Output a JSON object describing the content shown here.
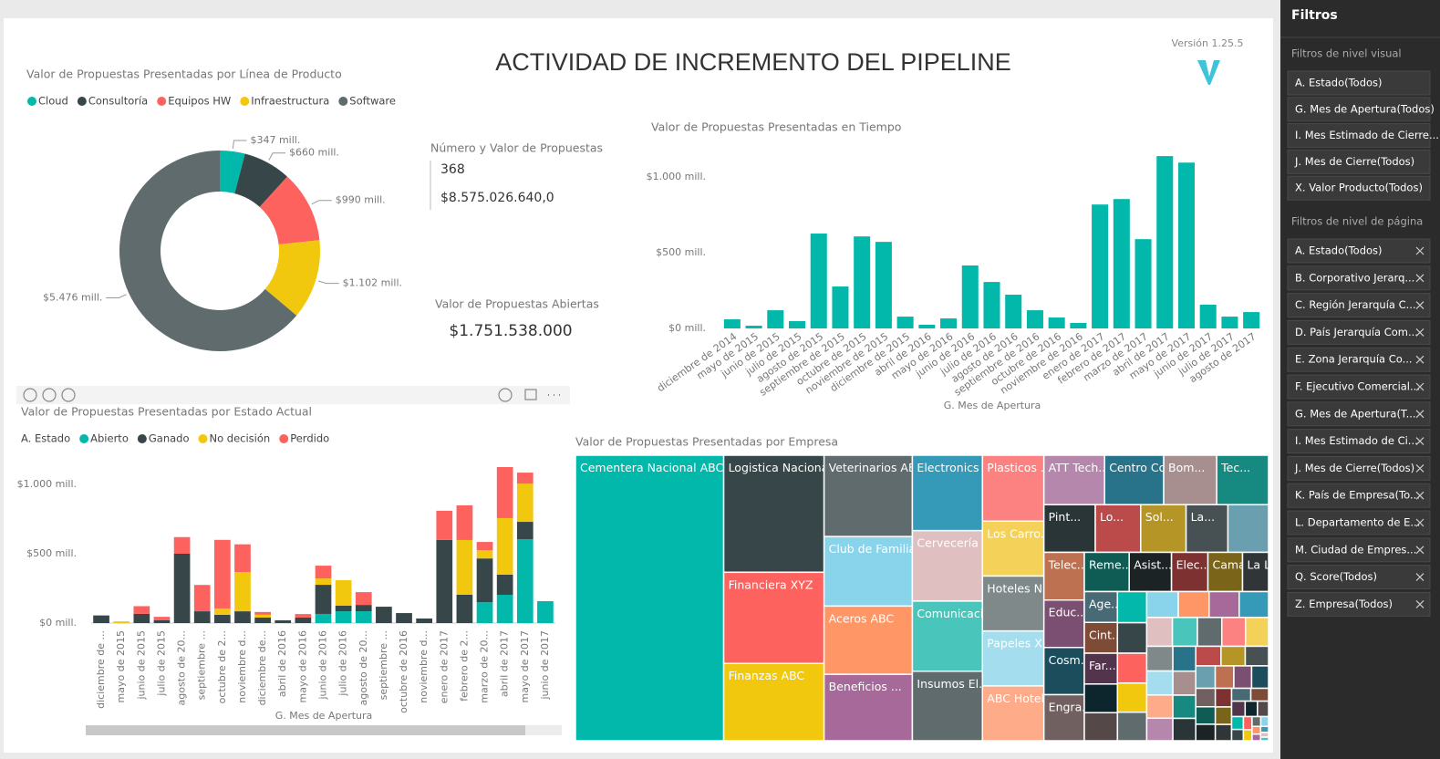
{
  "header": {
    "title": "ACTIVIDAD DE INCREMENTO DEL PIPELINE",
    "version": "Versión 1.25.5"
  },
  "cards": {
    "count_card": {
      "title": "Número y Valor de Propuestas",
      "count": 368,
      "value": "$8.575.026.640,0"
    },
    "open_card": {
      "title": "Valor de Propuestas Abiertas",
      "value": "$1.751.538.000"
    }
  },
  "chart_data": [
    {
      "type": "donut",
      "title": "Valor de Propuestas Presentadas por Línea de Producto",
      "categories": [
        "Cloud",
        "Consultoría",
        "Equipos HW",
        "Infraestructura",
        "Software"
      ],
      "values": [
        347,
        660,
        990,
        1102,
        5476
      ],
      "value_labels": [
        "$347 mill.",
        "$660 mill.",
        "$990 mill.",
        "$1.102 mill.",
        "$5.476 mill."
      ],
      "colors": [
        "#01b8aa",
        "#374649",
        "#fd625e",
        "#f2c80f",
        "#5f6b6d"
      ],
      "legend": "top-left"
    },
    {
      "type": "bar",
      "title": "Valor de Propuestas Presentadas en Tiempo",
      "x_label": "G. Mes de Apertura",
      "categories": [
        "diciembre de 2014",
        "mayo de 2015",
        "junio de 2015",
        "julio de 2015",
        "agosto de 2015",
        "septiembre de 2015",
        "octubre de 2015",
        "noviembre de 2015",
        "diciembre de 2015",
        "abril de 2016",
        "mayo de 2016",
        "junio de 2016",
        "julio de 2016",
        "agosto de 2016",
        "septiembre de 2016",
        "octubre de 2016",
        "noviembre de 2016",
        "enero de 2017",
        "febrero de 2017",
        "marzo de 2017",
        "abril de 2017",
        "mayo de 2017",
        "junio de 2017",
        "julio de 2017",
        "agosto de 2017"
      ],
      "values": [
        60,
        18,
        120,
        48,
        627,
        277,
        608,
        572,
        78,
        24,
        66,
        416,
        307,
        223,
        120,
        72,
        36,
        819,
        855,
        590,
        1139,
        1096,
        157,
        78,
        108
      ],
      "color": "#01b8aa",
      "ylim": [
        0,
        1200
      ],
      "yticks": [
        {
          "value": 0,
          "label": "$0 mill."
        },
        {
          "value": 500,
          "label": "$500 mill."
        },
        {
          "value": 1000,
          "label": "$1.000 mill."
        }
      ]
    },
    {
      "type": "stacked_bar",
      "title": "Valor de Propuestas Presentadas por Estado Actual",
      "x_label": "G. Mes de Apertura",
      "legend_title": "A. Estado",
      "categories": [
        "diciembre de ...",
        "mayo de 2015",
        "junio de 2015",
        "julio de 2015",
        "agosto de 20...",
        "septiembre ...",
        "octubre de 2...",
        "noviembre d...",
        "diciembre de...",
        "abril de 2016",
        "mayo de 2016",
        "junio de 2016",
        "julio de 2016",
        "agosto de 20...",
        "septiembre ...",
        "octubre de 2016",
        "noviembre d...",
        "enero de 2017",
        "febrero de 2...",
        "marzo de 20...",
        "abril de 2017",
        "mayo de 2017",
        "junio de 2017"
      ],
      "series": [
        {
          "name": "Abierto",
          "color": "#01b8aa",
          "values": [
            0,
            0,
            0,
            0,
            0,
            0,
            0,
            0,
            0,
            0,
            0,
            66,
            85,
            85,
            0,
            0,
            0,
            0,
            0,
            150,
            204,
            605,
            158
          ]
        },
        {
          "name": "Ganado",
          "color": "#374649",
          "values": [
            55,
            0,
            66,
            20,
            500,
            85,
            60,
            85,
            40,
            20,
            40,
            210,
            40,
            46,
            118,
            72,
            33,
            600,
            204,
            316,
            145,
            125,
            0
          ]
        },
        {
          "name": "No decisión",
          "color": "#f2c80f",
          "values": [
            0,
            12,
            0,
            0,
            0,
            0,
            45,
            283,
            20,
            0,
            0,
            46,
            184,
            0,
            0,
            0,
            0,
            0,
            395,
            59,
            408,
            276,
            0
          ]
        },
        {
          "name": "Perdido",
          "color": "#fd625e",
          "values": [
            0,
            0,
            56,
            25,
            120,
            190,
            495,
            200,
            20,
            0,
            25,
            92,
            0,
            92,
            0,
            0,
            0,
            210,
            250,
            60,
            368,
            79,
            0
          ]
        }
      ],
      "ylim": [
        0,
        1200
      ],
      "yticks": [
        {
          "value": 0,
          "label": "$0 mill."
        },
        {
          "value": 500,
          "label": "$500 mill."
        },
        {
          "value": 1000,
          "label": "$1.000 mill."
        }
      ]
    },
    {
      "type": "treemap",
      "title": "Valor de Propuestas Presentadas por Empresa",
      "categories": [
        "Cementera Nacional ABC",
        "Logistica Nacional ABC",
        "Financiera XYZ",
        "Finanzas ABC",
        "Veterinarios ABC",
        "Club de Familia A...",
        "Aceros ABC",
        "Beneficios ...",
        "Electronics ...",
        "Cervecería ...",
        "Comunicaci...",
        "Insumos El...",
        "Plasticos ...",
        "Los Carro...",
        "Hoteles N...",
        "Papeles X...",
        "ABC Hotel...",
        "ATT Tech...",
        "Centro Co...",
        "Bom...",
        "Tec...",
        "Pint...",
        "Lo...",
        "Sol...",
        "La...",
        null,
        "Telec...",
        "Educ...",
        "Cosm...",
        "Engra...",
        "Reme...",
        "Asist...",
        "Elec...",
        "Cama...",
        "La L...",
        "Age...",
        "Cint...",
        "Far...",
        null,
        null,
        null,
        null,
        null,
        null,
        null,
        null,
        null,
        null,
        null,
        null,
        null,
        null,
        null,
        null,
        null,
        null,
        null,
        null,
        null,
        null,
        null,
        null,
        null,
        null,
        null,
        null,
        null,
        null,
        null,
        null,
        null,
        null,
        null,
        null,
        null,
        null,
        null,
        null,
        null,
        null,
        null,
        null,
        null,
        null,
        null,
        null,
        null,
        null,
        null,
        null,
        null
      ],
      "values": [
        44590,
        12376,
        9638,
        8174,
        7564,
        6466,
        6344,
        6177,
        5568,
        5200,
        5180,
        5133,
        4266,
        3555,
        3555,
        3555,
        3550,
        3160,
        3081,
        2760,
        2700,
        2580,
        2280,
        2280,
        2100,
        2040,
        2030,
        2020,
        2010,
        1961,
        1855,
        1749,
        1505,
        1431,
        1075,
        1075,
        1075,
        1075,
        1000,
        980,
        960,
        940,
        920,
        900,
        880,
        860,
        840,
        820,
        800,
        780,
        760,
        740,
        720,
        700,
        680,
        660,
        640,
        620,
        600,
        580,
        560,
        540,
        520,
        500,
        480,
        460,
        440,
        420,
        400,
        380,
        360,
        340,
        320,
        300,
        280,
        260,
        240,
        220,
        200,
        180,
        160,
        140,
        120,
        100,
        90,
        80,
        70,
        60,
        50,
        40,
        30
      ],
      "colors": [
        "#01b8aa",
        "#374649",
        "#fd625e",
        "#f2c80f",
        "#5f6b6d",
        "#8ad4eb",
        "#fe9666",
        "#a66999",
        "#3599b8",
        "#dfbfbf",
        "#4ac5bb",
        "#5f6b6d",
        "#fb8281",
        "#f4d25a",
        "#7f898a",
        "#a4ddee",
        "#fdab89",
        "#b687ac",
        "#28738a",
        "#a78f8f",
        "#168980",
        "#293537",
        "#bb4a4a",
        "#b59525",
        "#475052",
        "#6a9fb0",
        "#bd7150",
        "#7b4f71",
        "#1b4d5c",
        "#706060",
        "#0f5c55",
        "#1c2325",
        "#7d3231",
        "#796419",
        "#303637",
        "#476a75",
        "#7e4b36",
        "#52354c",
        "#0d262e",
        "#544848"
      ]
    }
  ],
  "filters": {
    "title": "Filtros",
    "visual_title": "Filtros de nivel visual",
    "visual": [
      "A. Estado(Todos)",
      "G. Mes de Apertura(Todos)",
      "I. Mes Estimado de Cierre...",
      "J. Mes de Cierre(Todos)",
      "X. Valor Producto(Todos)"
    ],
    "page_title": "Filtros de nivel de página",
    "page": [
      "A. Estado(Todos)",
      "B. Corporativo Jerarq...",
      "C. Región Jerarquía C...",
      "D. País Jerarquía Com...",
      "E. Zona Jerarquía Co...",
      "F. Ejecutivo Comercial...",
      "G. Mes de Apertura(T...",
      "I. Mes Estimado de Ci...",
      "J. Mes de Cierre(Todos)",
      "K. País de Empresa(To...",
      "L. Departamento de E...",
      "M. Ciudad de Empres...",
      "Q. Score(Todos)",
      "Z. Empresa(Todos)"
    ]
  }
}
